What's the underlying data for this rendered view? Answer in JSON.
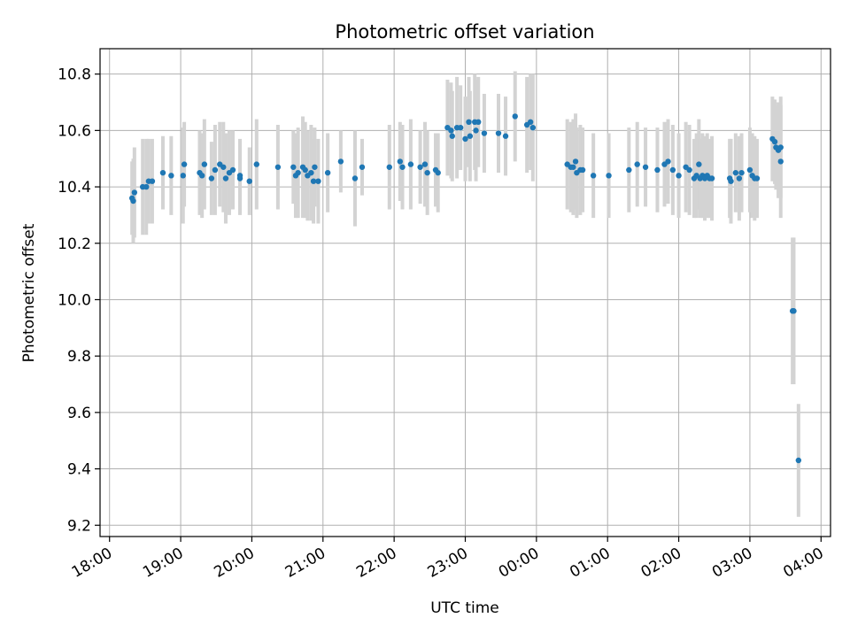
{
  "chart_data": {
    "type": "scatter",
    "title": "Photometric offset variation",
    "xlabel": "UTC time",
    "ylabel": "Photometric offset",
    "x_axis_type": "time",
    "xlim": [
      "17:52",
      "04:08"
    ],
    "ylim": [
      9.16,
      10.89
    ],
    "x_ticks": [
      "18:00",
      "19:00",
      "20:00",
      "21:00",
      "22:00",
      "23:00",
      "00:00",
      "01:00",
      "02:00",
      "03:00",
      "04:00"
    ],
    "y_ticks": [
      9.2,
      9.4,
      9.6,
      9.8,
      10.0,
      10.2,
      10.4,
      10.6,
      10.8
    ],
    "y_tick_labels": [
      "9.2",
      "9.4",
      "9.6",
      "9.8",
      "10.0",
      "10.2",
      "10.4",
      "10.6",
      "10.8"
    ],
    "grid": true,
    "marker_color": "#1f77b4",
    "errorbar_color": "#d3d3d3",
    "series": [
      {
        "points": [
          {
            "t": "18:19",
            "y": 10.36,
            "err": 0.13
          },
          {
            "t": "18:20",
            "y": 10.35,
            "err": 0.15
          },
          {
            "t": "18:21",
            "y": 10.38,
            "err": 0.16
          },
          {
            "t": "18:28",
            "y": 10.4,
            "err": 0.17
          },
          {
            "t": "18:31",
            "y": 10.4,
            "err": 0.17
          },
          {
            "t": "18:33",
            "y": 10.42,
            "err": 0.15
          },
          {
            "t": "18:36",
            "y": 10.42,
            "err": 0.15
          },
          {
            "t": "18:45",
            "y": 10.45,
            "err": 0.13
          },
          {
            "t": "18:52",
            "y": 10.44,
            "err": 0.14
          },
          {
            "t": "19:02",
            "y": 10.44,
            "err": 0.17
          },
          {
            "t": "19:03",
            "y": 10.48,
            "err": 0.15
          },
          {
            "t": "19:16",
            "y": 10.45,
            "err": 0.15
          },
          {
            "t": "19:18",
            "y": 10.44,
            "err": 0.15
          },
          {
            "t": "19:20",
            "y": 10.48,
            "err": 0.16
          },
          {
            "t": "19:26",
            "y": 10.43,
            "err": 0.13
          },
          {
            "t": "19:29",
            "y": 10.46,
            "err": 0.16
          },
          {
            "t": "19:33",
            "y": 10.48,
            "err": 0.15
          },
          {
            "t": "19:36",
            "y": 10.47,
            "err": 0.16
          },
          {
            "t": "19:38",
            "y": 10.43,
            "err": 0.16
          },
          {
            "t": "19:41",
            "y": 10.45,
            "err": 0.15
          },
          {
            "t": "19:44",
            "y": 10.46,
            "err": 0.14
          },
          {
            "t": "19:50",
            "y": 10.44,
            "err": 0.13
          },
          {
            "t": "19:50",
            "y": 10.43,
            "err": 0.13
          },
          {
            "t": "19:58",
            "y": 10.42,
            "err": 0.12
          },
          {
            "t": "20:04",
            "y": 10.48,
            "err": 0.16
          },
          {
            "t": "20:22",
            "y": 10.47,
            "err": 0.15
          },
          {
            "t": "20:35",
            "y": 10.47,
            "err": 0.13
          },
          {
            "t": "20:37",
            "y": 10.44,
            "err": 0.15
          },
          {
            "t": "20:39",
            "y": 10.45,
            "err": 0.16
          },
          {
            "t": "20:43",
            "y": 10.47,
            "err": 0.18
          },
          {
            "t": "20:45",
            "y": 10.46,
            "err": 0.17
          },
          {
            "t": "20:47",
            "y": 10.44,
            "err": 0.16
          },
          {
            "t": "20:50",
            "y": 10.45,
            "err": 0.17
          },
          {
            "t": "20:52",
            "y": 10.42,
            "err": 0.15
          },
          {
            "t": "20:53",
            "y": 10.47,
            "err": 0.14
          },
          {
            "t": "20:56",
            "y": 10.42,
            "err": 0.15
          },
          {
            "t": "21:04",
            "y": 10.45,
            "err": 0.14
          },
          {
            "t": "21:15",
            "y": 10.49,
            "err": 0.11
          },
          {
            "t": "21:27",
            "y": 10.43,
            "err": 0.17
          },
          {
            "t": "21:33",
            "y": 10.47,
            "err": 0.1
          },
          {
            "t": "21:56",
            "y": 10.47,
            "err": 0.15
          },
          {
            "t": "22:05",
            "y": 10.49,
            "err": 0.14
          },
          {
            "t": "22:07",
            "y": 10.47,
            "err": 0.15
          },
          {
            "t": "22:14",
            "y": 10.48,
            "err": 0.16
          },
          {
            "t": "22:22",
            "y": 10.47,
            "err": 0.13
          },
          {
            "t": "22:26",
            "y": 10.48,
            "err": 0.15
          },
          {
            "t": "22:28",
            "y": 10.45,
            "err": 0.15
          },
          {
            "t": "22:35",
            "y": 10.46,
            "err": 0.13
          },
          {
            "t": "22:37",
            "y": 10.45,
            "err": 0.14
          },
          {
            "t": "22:45",
            "y": 10.61,
            "err": 0.17
          },
          {
            "t": "22:48",
            "y": 10.6,
            "err": 0.17
          },
          {
            "t": "22:49",
            "y": 10.58,
            "err": 0.16
          },
          {
            "t": "22:53",
            "y": 10.61,
            "err": 0.18
          },
          {
            "t": "22:56",
            "y": 10.61,
            "err": 0.15
          },
          {
            "t": "23:00",
            "y": 10.57,
            "err": 0.15
          },
          {
            "t": "23:03",
            "y": 10.63,
            "err": 0.16
          },
          {
            "t": "23:04",
            "y": 10.58,
            "err": 0.16
          },
          {
            "t": "23:08",
            "y": 10.63,
            "err": 0.17
          },
          {
            "t": "23:09",
            "y": 10.6,
            "err": 0.18
          },
          {
            "t": "23:11",
            "y": 10.63,
            "err": 0.16
          },
          {
            "t": "23:16",
            "y": 10.59,
            "err": 0.14
          },
          {
            "t": "23:28",
            "y": 10.59,
            "err": 0.14
          },
          {
            "t": "23:34",
            "y": 10.58,
            "err": 0.14
          },
          {
            "t": "23:42",
            "y": 10.65,
            "err": 0.16
          },
          {
            "t": "23:52",
            "y": 10.62,
            "err": 0.17
          },
          {
            "t": "23:55",
            "y": 10.63,
            "err": 0.17
          },
          {
            "t": "23:57",
            "y": 10.61,
            "err": 0.19
          },
          {
            "t": "00:26",
            "y": 10.48,
            "err": 0.16
          },
          {
            "t": "00:29",
            "y": 10.47,
            "err": 0.16
          },
          {
            "t": "00:31",
            "y": 10.47,
            "err": 0.17
          },
          {
            "t": "00:33",
            "y": 10.49,
            "err": 0.17
          },
          {
            "t": "00:34",
            "y": 10.45,
            "err": 0.16
          },
          {
            "t": "00:37",
            "y": 10.46,
            "err": 0.16
          },
          {
            "t": "00:39",
            "y": 10.46,
            "err": 0.15
          },
          {
            "t": "00:48",
            "y": 10.44,
            "err": 0.15
          },
          {
            "t": "01:01",
            "y": 10.44,
            "err": 0.15
          },
          {
            "t": "01:18",
            "y": 10.46,
            "err": 0.15
          },
          {
            "t": "01:25",
            "y": 10.48,
            "err": 0.15
          },
          {
            "t": "01:32",
            "y": 10.47,
            "err": 0.14
          },
          {
            "t": "01:42",
            "y": 10.46,
            "err": 0.15
          },
          {
            "t": "01:48",
            "y": 10.48,
            "err": 0.15
          },
          {
            "t": "01:51",
            "y": 10.49,
            "err": 0.15
          },
          {
            "t": "01:55",
            "y": 10.46,
            "err": 0.16
          },
          {
            "t": "02:00",
            "y": 10.44,
            "err": 0.15
          },
          {
            "t": "02:06",
            "y": 10.47,
            "err": 0.16
          },
          {
            "t": "02:09",
            "y": 10.46,
            "err": 0.16
          },
          {
            "t": "02:13",
            "y": 10.43,
            "err": 0.14
          },
          {
            "t": "02:15",
            "y": 10.44,
            "err": 0.15
          },
          {
            "t": "02:17",
            "y": 10.48,
            "err": 0.16
          },
          {
            "t": "02:18",
            "y": 10.43,
            "err": 0.14
          },
          {
            "t": "02:20",
            "y": 10.44,
            "err": 0.15
          },
          {
            "t": "02:22",
            "y": 10.43,
            "err": 0.15
          },
          {
            "t": "02:24",
            "y": 10.44,
            "err": 0.15
          },
          {
            "t": "02:26",
            "y": 10.43,
            "err": 0.14
          },
          {
            "t": "02:28",
            "y": 10.43,
            "err": 0.15
          },
          {
            "t": "02:43",
            "y": 10.43,
            "err": 0.14
          },
          {
            "t": "02:44",
            "y": 10.42,
            "err": 0.15
          },
          {
            "t": "02:48",
            "y": 10.45,
            "err": 0.14
          },
          {
            "t": "02:51",
            "y": 10.43,
            "err": 0.15
          },
          {
            "t": "02:53",
            "y": 10.45,
            "err": 0.14
          },
          {
            "t": "03:00",
            "y": 10.46,
            "err": 0.15
          },
          {
            "t": "03:02",
            "y": 10.44,
            "err": 0.15
          },
          {
            "t": "03:04",
            "y": 10.43,
            "err": 0.15
          },
          {
            "t": "03:06",
            "y": 10.43,
            "err": 0.14
          },
          {
            "t": "03:19",
            "y": 10.57,
            "err": 0.15
          },
          {
            "t": "03:21",
            "y": 10.56,
            "err": 0.15
          },
          {
            "t": "03:22",
            "y": 10.54,
            "err": 0.15
          },
          {
            "t": "03:24",
            "y": 10.53,
            "err": 0.17
          },
          {
            "t": "03:26",
            "y": 10.54,
            "err": 0.18
          },
          {
            "t": "03:26",
            "y": 10.49,
            "err": 0.2
          },
          {
            "t": "03:36",
            "y": 9.96,
            "err": 0.26
          },
          {
            "t": "03:37",
            "y": 9.96,
            "err": 0.26
          },
          {
            "t": "03:41",
            "y": 9.43,
            "err": 0.2
          }
        ]
      }
    ]
  }
}
